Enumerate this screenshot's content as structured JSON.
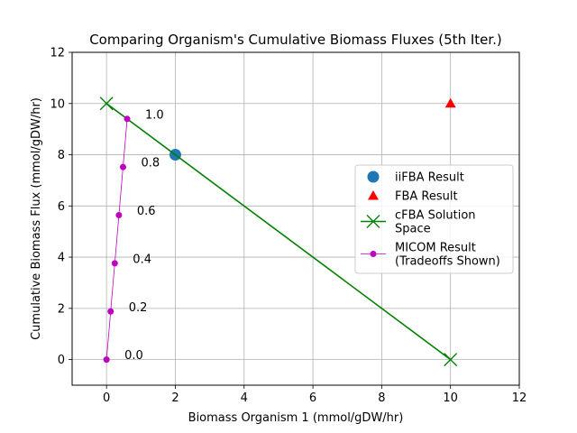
{
  "chart_data": {
    "type": "scatter",
    "title": "Comparing Organism's Cumulative Biomass Fluxes (5th Iter.)",
    "xlabel": "Biomass Organism 1 (mmol/gDW/hr)",
    "ylabel": "Cumulative Biomass Flux (mmol/gDW/hr)",
    "xlim": [
      -1,
      12
    ],
    "ylim": [
      -1,
      12
    ],
    "xticks": [
      "0",
      "2",
      "4",
      "6",
      "8",
      "10",
      "12"
    ],
    "yticks": [
      "0",
      "2",
      "4",
      "6",
      "8",
      "10",
      "12"
    ],
    "grid": true,
    "legend_position": "center-right",
    "series": [
      {
        "name": "iiFBA Result",
        "kind": "marker",
        "marker": "circle",
        "color": "#1f77b4",
        "points": [
          {
            "x": 2,
            "y": 8
          }
        ]
      },
      {
        "name": "FBA Result",
        "kind": "marker",
        "marker": "triangle",
        "color": "#ff0000",
        "points": [
          {
            "x": 10,
            "y": 10
          }
        ]
      },
      {
        "name": "cFBA Solution\nSpace",
        "kind": "line-x",
        "color": "#008000",
        "points": [
          {
            "x": 0,
            "y": 10
          },
          {
            "x": 10,
            "y": 0
          }
        ]
      },
      {
        "name": "MICOM Result\n(Tradeoffs Shown)",
        "kind": "line-dot",
        "color": "#bf00bf",
        "points": [
          {
            "x": 0.0,
            "y": 0.0
          },
          {
            "x": 0.12,
            "y": 1.88
          },
          {
            "x": 0.24,
            "y": 3.76
          },
          {
            "x": 0.36,
            "y": 5.64
          },
          {
            "x": 0.48,
            "y": 7.52
          },
          {
            "x": 0.6,
            "y": 9.4
          }
        ],
        "annotations": [
          "0.0",
          "0.2",
          "0.4",
          "0.6",
          "0.8",
          "1.0"
        ]
      }
    ]
  }
}
